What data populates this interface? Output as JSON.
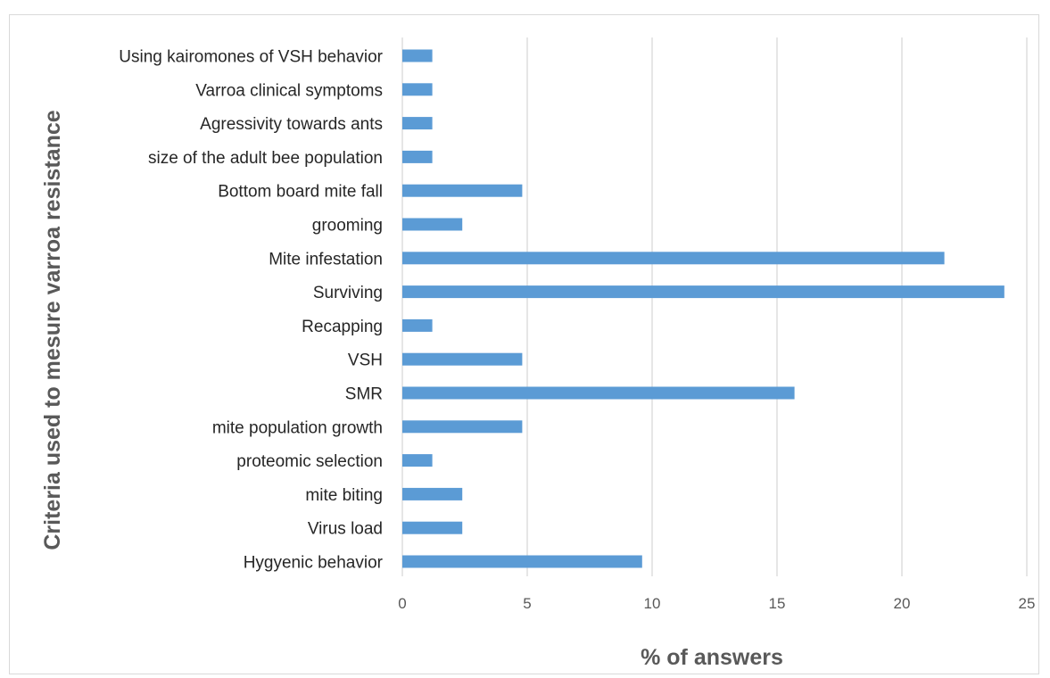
{
  "chart_data": {
    "type": "bar",
    "orientation": "horizontal",
    "categories": [
      "Using kairomones of VSH behavior",
      "Varroa clinical symptoms",
      "Agressivity towards ants",
      "size of the adult bee population",
      "Bottom board mite fall",
      "grooming",
      "Mite infestation",
      "Surviving",
      "Recapping",
      "VSH",
      "SMR",
      "mite population growth",
      "proteomic selection",
      "mite biting",
      "Virus load",
      "Hygyenic behavior"
    ],
    "values": [
      1.2,
      1.2,
      1.2,
      1.2,
      4.8,
      2.4,
      21.7,
      24.1,
      1.2,
      4.8,
      15.7,
      4.8,
      1.2,
      2.4,
      2.4,
      9.6
    ],
    "xlabel": "% of answers",
    "ylabel": "Criteria used to mesure varroa resistance",
    "xlim": [
      0,
      25
    ],
    "xticks": [
      "0",
      "5",
      "10",
      "15",
      "20",
      "25"
    ],
    "grid": "vertical",
    "bar_color": "#5b9bd5",
    "grid_color": "#d9d9d9"
  }
}
